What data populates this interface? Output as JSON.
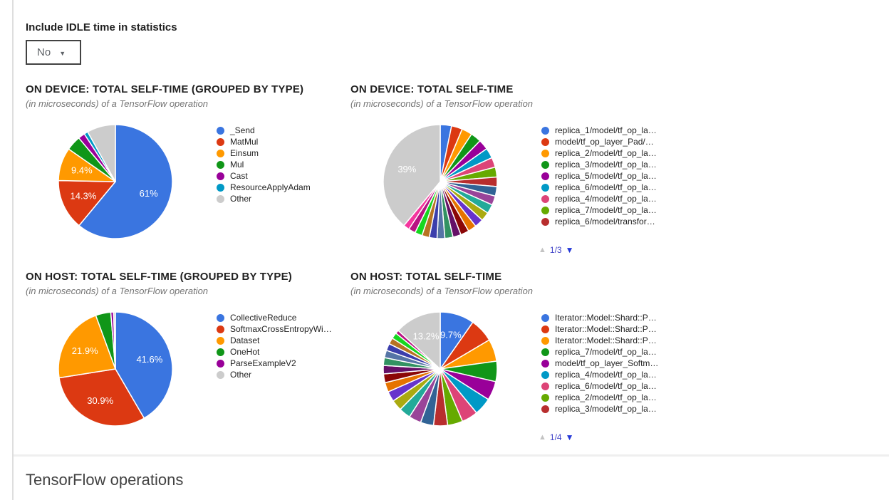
{
  "controls": {
    "idle_label": "Include IDLE time in statistics",
    "idle_value": "No"
  },
  "icons": {
    "dropdown_caret": "▼",
    "page_up": "▲",
    "page_down": "▼"
  },
  "colors": {
    "accent_blue": "#3A75E0",
    "other_gray": "#CCCCCC",
    "pagination_up_disabled": "#c3c3c3",
    "pagination_down_active": "#2438d8",
    "pagination_text": "#4043c8",
    "title_text": "#212121",
    "subtitle_text": "#757575",
    "divider": "#efefef"
  },
  "section_heading": "TensorFlow operations",
  "chart_data": [
    {
      "type": "pie",
      "title": "ON DEVICE: TOTAL SELF-TIME (GROUPED BY TYPE)",
      "subtitle": "(in microseconds) of a TensorFlow operation",
      "legend_position": "right",
      "legend_visible_count": 7,
      "slices": [
        {
          "label": "_Send",
          "value": 61.0,
          "color": "#3A75E0",
          "pct_label": "61%"
        },
        {
          "label": "MatMul",
          "value": 14.3,
          "color": "#DC3912",
          "pct_label": "14.3%"
        },
        {
          "label": "Einsum",
          "value": 9.4,
          "color": "#FF9900",
          "pct_label": "9.4%"
        },
        {
          "label": "Mul",
          "value": 4.2,
          "color": "#109618"
        },
        {
          "label": "Cast",
          "value": 1.9,
          "color": "#990099"
        },
        {
          "label": "ResourceApplyAdam",
          "value": 1.1,
          "color": "#0099C6"
        },
        {
          "label": "Other",
          "value": 8.1,
          "color": "#CCCCCC"
        }
      ]
    },
    {
      "type": "pie",
      "title": "ON DEVICE: TOTAL SELF-TIME",
      "subtitle": "(in microseconds) of a TensorFlow operation",
      "legend_position": "right",
      "legend_visible_count": 9,
      "pagination": {
        "label": "1/3",
        "up_enabled": false,
        "down_enabled": true
      },
      "slices": [
        {
          "label": "replica_1/model/tf_op_la…",
          "value": 3.2,
          "color": "#3A75E0"
        },
        {
          "label": "model/tf_op_layer_Pad/…",
          "value": 3.1,
          "color": "#DC3912"
        },
        {
          "label": "replica_2/model/tf_op_la…",
          "value": 3.0,
          "color": "#FF9900"
        },
        {
          "label": "replica_3/model/tf_op_la…",
          "value": 3.0,
          "color": "#109618"
        },
        {
          "label": "replica_5/model/tf_op_la…",
          "value": 2.9,
          "color": "#990099"
        },
        {
          "label": "replica_6/model/tf_op_la…",
          "value": 2.9,
          "color": "#0099C6"
        },
        {
          "label": "replica_4/model/tf_op_la…",
          "value": 2.8,
          "color": "#DD4477"
        },
        {
          "label": "replica_7/model/tf_op_la…",
          "value": 2.8,
          "color": "#66AA00"
        },
        {
          "label": "replica_6/model/transfor…",
          "value": 2.7,
          "color": "#B82E2E"
        },
        {
          "label": "",
          "value": 2.7,
          "color": "#316395"
        },
        {
          "label": "",
          "value": 2.6,
          "color": "#994499"
        },
        {
          "label": "",
          "value": 2.6,
          "color": "#22AA99"
        },
        {
          "label": "",
          "value": 2.5,
          "color": "#AAAA11"
        },
        {
          "label": "",
          "value": 2.5,
          "color": "#6633CC"
        },
        {
          "label": "",
          "value": 2.4,
          "color": "#E67300"
        },
        {
          "label": "",
          "value": 2.4,
          "color": "#8B0707"
        },
        {
          "label": "",
          "value": 2.3,
          "color": "#651067"
        },
        {
          "label": "",
          "value": 2.3,
          "color": "#329262"
        },
        {
          "label": "",
          "value": 2.2,
          "color": "#5574A6"
        },
        {
          "label": "",
          "value": 2.2,
          "color": "#3B3EAC"
        },
        {
          "label": "",
          "value": 2.1,
          "color": "#B77322"
        },
        {
          "label": "",
          "value": 2.1,
          "color": "#16D620"
        },
        {
          "label": "",
          "value": 2.0,
          "color": "#B91383"
        },
        {
          "label": "",
          "value": 1.7,
          "color": "#F4359E"
        },
        {
          "label": "",
          "value": 39.0,
          "color": "#CCCCCC",
          "pct_label": "39%"
        }
      ]
    },
    {
      "type": "pie",
      "title": "ON HOST: TOTAL SELF-TIME (GROUPED BY TYPE)",
      "subtitle": "(in microseconds) of a TensorFlow operation",
      "legend_position": "right",
      "legend_visible_count": 6,
      "slices": [
        {
          "label": "CollectiveReduce",
          "value": 41.6,
          "color": "#3A75E0",
          "pct_label": "41.6%"
        },
        {
          "label": "SoftmaxCrossEntropyWi…",
          "value": 30.9,
          "color": "#DC3912",
          "pct_label": "30.9%"
        },
        {
          "label": "Dataset",
          "value": 21.9,
          "color": "#FF9900",
          "pct_label": "21.9%"
        },
        {
          "label": "OneHot",
          "value": 4.3,
          "color": "#109618"
        },
        {
          "label": "ParseExampleV2",
          "value": 0.8,
          "color": "#990099"
        },
        {
          "label": "Other",
          "value": 0.5,
          "color": "#CCCCCC"
        }
      ]
    },
    {
      "type": "pie",
      "title": "ON HOST: TOTAL SELF-TIME",
      "subtitle": "(in microseconds) of a TensorFlow operation",
      "legend_position": "right",
      "legend_visible_count": 9,
      "pagination": {
        "label": "1/4",
        "up_enabled": false,
        "down_enabled": true
      },
      "slices": [
        {
          "label": "Iterator::Model::Shard::P…",
          "value": 9.7,
          "color": "#3A75E0",
          "pct_label": "9.7%"
        },
        {
          "label": "Iterator::Model::Shard::P…",
          "value": 6.8,
          "color": "#DC3912"
        },
        {
          "label": "Iterator::Model::Shard::P…",
          "value": 6.3,
          "color": "#FF9900"
        },
        {
          "label": "replica_7/model/tf_op_la…",
          "value": 5.8,
          "color": "#109618"
        },
        {
          "label": "model/tf_op_layer_Softm…",
          "value": 5.4,
          "color": "#990099"
        },
        {
          "label": "replica_4/model/tf_op_la…",
          "value": 5.0,
          "color": "#0099C6"
        },
        {
          "label": "replica_6/model/tf_op_la…",
          "value": 4.6,
          "color": "#DD4477"
        },
        {
          "label": "replica_2/model/tf_op_la…",
          "value": 4.3,
          "color": "#66AA00"
        },
        {
          "label": "replica_3/model/tf_op_la…",
          "value": 4.0,
          "color": "#B82E2E"
        },
        {
          "label": "",
          "value": 3.7,
          "color": "#316395"
        },
        {
          "label": "",
          "value": 3.5,
          "color": "#994499"
        },
        {
          "label": "",
          "value": 3.3,
          "color": "#22AA99"
        },
        {
          "label": "",
          "value": 3.1,
          "color": "#AAAA11"
        },
        {
          "label": "",
          "value": 2.9,
          "color": "#6633CC"
        },
        {
          "label": "",
          "value": 2.7,
          "color": "#E67300"
        },
        {
          "label": "",
          "value": 2.5,
          "color": "#8B0707"
        },
        {
          "label": "",
          "value": 2.4,
          "color": "#651067"
        },
        {
          "label": "",
          "value": 2.2,
          "color": "#329262"
        },
        {
          "label": "",
          "value": 2.1,
          "color": "#5574A6"
        },
        {
          "label": "",
          "value": 2.0,
          "color": "#3B3EAC"
        },
        {
          "label": "",
          "value": 1.8,
          "color": "#B77322"
        },
        {
          "label": "",
          "value": 1.7,
          "color": "#16D620"
        },
        {
          "label": "",
          "value": 1.0,
          "color": "#B91383"
        },
        {
          "label": "",
          "value": 13.2,
          "color": "#CCCCCC",
          "pct_label": "13.2%"
        }
      ]
    }
  ]
}
